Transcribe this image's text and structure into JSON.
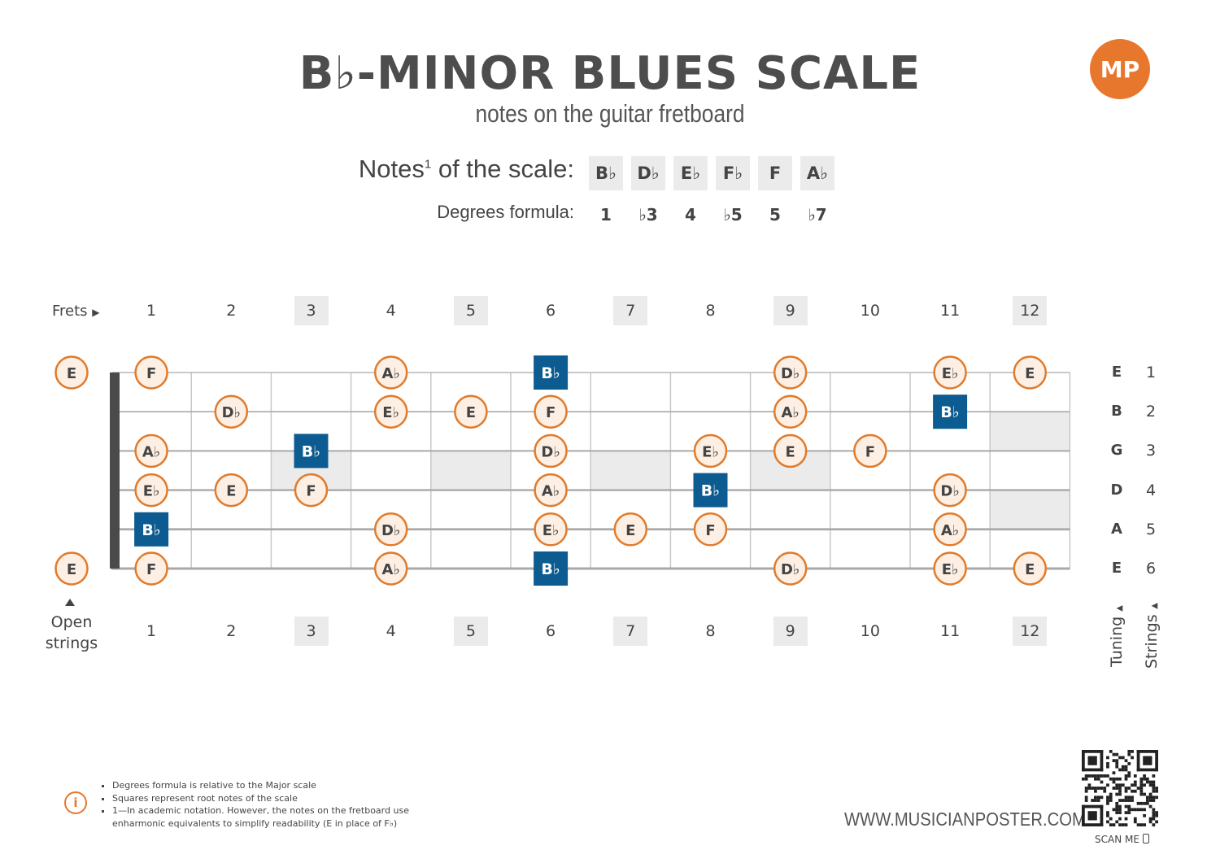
{
  "header": {
    "title": "B♭-MINOR BLUES SCALE",
    "subtitle": "notes on the guitar fretboard",
    "logo_text": "MP"
  },
  "scale": {
    "notes_label": "Notes",
    "notes_label_sup": "1",
    "notes_label_tail": " of the scale:",
    "notes": [
      "B♭",
      "D♭",
      "E♭",
      "F♭",
      "F",
      "A♭"
    ],
    "degrees_label": "Degrees formula:",
    "degrees": [
      "1",
      "♭3",
      "4",
      "♭5",
      "5",
      "♭7"
    ]
  },
  "fretboard": {
    "frets_caption": "Frets",
    "fret_numbers": [
      "1",
      "2",
      "3",
      "4",
      "5",
      "6",
      "7",
      "8",
      "9",
      "10",
      "11",
      "12"
    ],
    "shaded_frets": [
      "3",
      "5",
      "7",
      "9",
      "12"
    ],
    "open_caption_line1": "Open",
    "open_caption_line2": "strings",
    "tuning": [
      "E",
      "B",
      "G",
      "D",
      "A",
      "E"
    ],
    "string_numbers": [
      "1",
      "2",
      "3",
      "4",
      "5",
      "6"
    ],
    "tuning_caption": "Tuning",
    "strings_caption": "Strings",
    "root_note": "B♭",
    "positions": [
      {
        "string": 1,
        "fret": 0,
        "note": "E"
      },
      {
        "string": 1,
        "fret": 1,
        "note": "F"
      },
      {
        "string": 1,
        "fret": 4,
        "note": "A♭"
      },
      {
        "string": 1,
        "fret": 6,
        "note": "B♭",
        "root": true
      },
      {
        "string": 1,
        "fret": 9,
        "note": "D♭"
      },
      {
        "string": 1,
        "fret": 11,
        "note": "E♭"
      },
      {
        "string": 1,
        "fret": 12,
        "note": "E"
      },
      {
        "string": 2,
        "fret": 2,
        "note": "D♭"
      },
      {
        "string": 2,
        "fret": 4,
        "note": "E♭"
      },
      {
        "string": 2,
        "fret": 5,
        "note": "E"
      },
      {
        "string": 2,
        "fret": 6,
        "note": "F"
      },
      {
        "string": 2,
        "fret": 9,
        "note": "A♭"
      },
      {
        "string": 2,
        "fret": 11,
        "note": "B♭",
        "root": true
      },
      {
        "string": 3,
        "fret": 1,
        "note": "A♭"
      },
      {
        "string": 3,
        "fret": 3,
        "note": "B♭",
        "root": true
      },
      {
        "string": 3,
        "fret": 6,
        "note": "D♭"
      },
      {
        "string": 3,
        "fret": 8,
        "note": "E♭"
      },
      {
        "string": 3,
        "fret": 9,
        "note": "E"
      },
      {
        "string": 3,
        "fret": 10,
        "note": "F"
      },
      {
        "string": 4,
        "fret": 1,
        "note": "E♭"
      },
      {
        "string": 4,
        "fret": 2,
        "note": "E"
      },
      {
        "string": 4,
        "fret": 3,
        "note": "F"
      },
      {
        "string": 4,
        "fret": 6,
        "note": "A♭"
      },
      {
        "string": 4,
        "fret": 8,
        "note": "B♭",
        "root": true
      },
      {
        "string": 4,
        "fret": 11,
        "note": "D♭"
      },
      {
        "string": 5,
        "fret": 1,
        "note": "B♭",
        "root": true
      },
      {
        "string": 5,
        "fret": 4,
        "note": "D♭"
      },
      {
        "string": 5,
        "fret": 6,
        "note": "E♭"
      },
      {
        "string": 5,
        "fret": 7,
        "note": "E"
      },
      {
        "string": 5,
        "fret": 8,
        "note": "F"
      },
      {
        "string": 5,
        "fret": 11,
        "note": "A♭"
      },
      {
        "string": 6,
        "fret": 0,
        "note": "E"
      },
      {
        "string": 6,
        "fret": 1,
        "note": "F"
      },
      {
        "string": 6,
        "fret": 4,
        "note": "A♭"
      },
      {
        "string": 6,
        "fret": 6,
        "note": "B♭",
        "root": true
      },
      {
        "string": 6,
        "fret": 9,
        "note": "D♭"
      },
      {
        "string": 6,
        "fret": 11,
        "note": "E♭"
      },
      {
        "string": 6,
        "fret": 12,
        "note": "E"
      }
    ]
  },
  "footer": {
    "footnotes": [
      "Degrees formula is relative to the Major scale",
      "Squares represent root notes of the scale",
      "1—In academic notation. However, the notes on the fretboard use enharmonic equivalents to simplify readability (E in place of F♭)"
    ],
    "website": "WWW.MUSICIANPOSTER.COM",
    "scan_label": "SCAN ME"
  },
  "colors": {
    "note_fill": "#fdefe3",
    "note_border": "#e07b2c",
    "root_fill": "#0d5c91",
    "accent": "#e8772e",
    "shade": "#ebebeb"
  },
  "icons": [
    "info-icon",
    "phone-icon",
    "qr-code",
    "arrow-right-icon",
    "arrow-up-icon"
  ]
}
